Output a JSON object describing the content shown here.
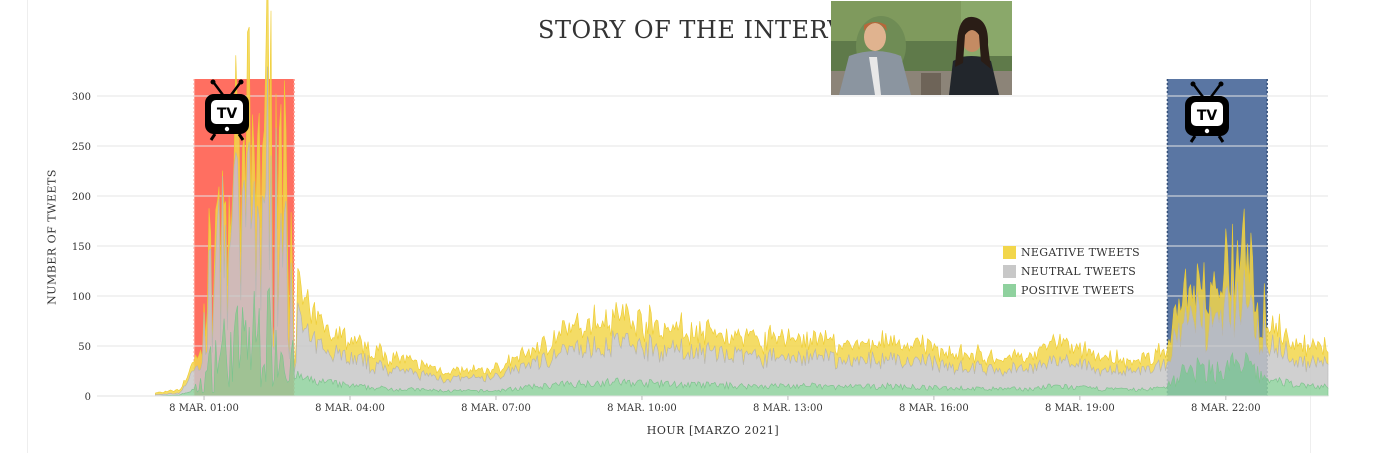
{
  "title": "STORY OF THE INTERVIEW",
  "colors": {
    "negative": "#f2d64b",
    "neutral": "#c8c8c8",
    "positive": "#8fd19e",
    "tv_red": "#ff6f61",
    "tv_blue": "#5a76a3",
    "grid": "#e6e6e6"
  },
  "icons": [
    "tv-icon",
    "interview-photo"
  ],
  "chart_data": {
    "type": "area",
    "title": "STORY OF THE INTERVIEW",
    "xlabel": "HOUR [MARZO 2021]",
    "ylabel": "NUMBER OF TWEETS",
    "ylim": [
      0,
      300
    ],
    "yticks": [
      0,
      50,
      100,
      150,
      200,
      250,
      300
    ],
    "xlim_hours": [
      -1.2,
      24.1
    ],
    "xticks": [
      {
        "hour": 1,
        "label": "8 MAR. 01:00"
      },
      {
        "hour": 4,
        "label": "8 MAR. 04:00"
      },
      {
        "hour": 7,
        "label": "8 MAR. 07:00"
      },
      {
        "hour": 10,
        "label": "8 MAR. 10:00"
      },
      {
        "hour": 13,
        "label": "8 MAR. 13:00"
      },
      {
        "hour": 16,
        "label": "8 MAR. 16:00"
      },
      {
        "hour": 19,
        "label": "8 MAR. 19:00"
      },
      {
        "hour": 22,
        "label": "8 MAR. 22:00"
      }
    ],
    "stacked": true,
    "grid": true,
    "legend_position": "right-middle",
    "highlight_bands": [
      {
        "start_hour": 0.8,
        "end_hour": 2.85,
        "color": "red"
      },
      {
        "start_hour": 20.8,
        "end_hour": 22.85,
        "color": "blue"
      }
    ],
    "x": [
      0.0,
      0.5,
      0.9,
      1.1,
      1.3,
      1.5,
      1.7,
      1.9,
      2.1,
      2.3,
      2.5,
      2.7,
      2.9,
      3.2,
      3.6,
      4.0,
      4.5,
      5.0,
      5.5,
      6.0,
      6.5,
      7.0,
      7.5,
      8.0,
      8.5,
      9.0,
      9.5,
      10.0,
      10.5,
      11.0,
      11.5,
      12.0,
      12.5,
      13.0,
      13.5,
      14.0,
      14.5,
      15.0,
      15.5,
      16.0,
      16.5,
      17.0,
      17.5,
      18.0,
      18.5,
      19.0,
      19.5,
      20.0,
      20.5,
      20.8,
      21.0,
      21.3,
      21.6,
      21.9,
      22.1,
      22.4,
      22.7,
      23.0,
      23.4,
      23.8,
      24.1
    ],
    "series": [
      {
        "name": "NEGATIVE TWEETS",
        "values": [
          2,
          3,
          10,
          25,
          40,
          40,
          55,
          65,
          70,
          90,
          75,
          70,
          30,
          25,
          22,
          18,
          15,
          12,
          10,
          8,
          8,
          8,
          12,
          15,
          20,
          25,
          28,
          25,
          23,
          20,
          20,
          18,
          18,
          20,
          18,
          17,
          16,
          18,
          16,
          15,
          15,
          12,
          12,
          12,
          20,
          15,
          12,
          10,
          12,
          15,
          25,
          28,
          30,
          40,
          45,
          50,
          25,
          20,
          18,
          15,
          15
        ]
      },
      {
        "name": "NEUTRAL TWEETS",
        "values": [
          1,
          2,
          25,
          60,
          95,
          90,
          100,
          110,
          115,
          130,
          110,
          100,
          60,
          38,
          33,
          28,
          22,
          18,
          15,
          12,
          12,
          14,
          20,
          28,
          33,
          38,
          40,
          37,
          35,
          33,
          32,
          30,
          28,
          30,
          28,
          27,
          25,
          28,
          26,
          25,
          22,
          20,
          20,
          20,
          25,
          22,
          20,
          18,
          20,
          25,
          40,
          45,
          45,
          50,
          55,
          65,
          45,
          35,
          25,
          22,
          22
        ]
      },
      {
        "name": "POSITIVE TWEETS",
        "values": [
          0,
          1,
          8,
          25,
          45,
          45,
          50,
          55,
          60,
          60,
          55,
          45,
          20,
          15,
          13,
          10,
          8,
          7,
          6,
          5,
          5,
          5,
          8,
          10,
          12,
          13,
          14,
          13,
          12,
          11,
          11,
          10,
          10,
          10,
          10,
          9,
          9,
          10,
          9,
          8,
          8,
          7,
          7,
          7,
          10,
          8,
          7,
          6,
          7,
          10,
          20,
          25,
          25,
          25,
          30,
          30,
          20,
          15,
          12,
          10,
          10
        ]
      }
    ]
  }
}
